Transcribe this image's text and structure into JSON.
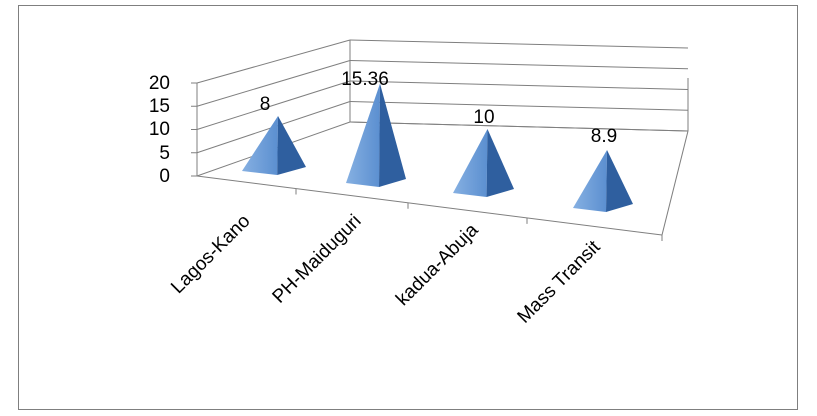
{
  "chart_data": {
    "type": "bar",
    "shape": "3d-pyramid",
    "categories": [
      "Lagos-Kano",
      "PH-Maiduguri",
      "kadua-Abuja",
      "Mass Transit"
    ],
    "values": [
      8,
      15.36,
      10,
      8.9
    ],
    "value_labels": [
      "8",
      "15.36",
      "10",
      "8.9"
    ],
    "ylim": [
      0,
      20
    ],
    "yticks": [
      "0",
      "5",
      "10",
      "15",
      "20"
    ],
    "grid": true,
    "legend": "none",
    "colors": {
      "front": "#5b8fd0",
      "side": "#2f5f9f",
      "light": "#86b0e2",
      "axis": "#7f7f7f"
    }
  }
}
